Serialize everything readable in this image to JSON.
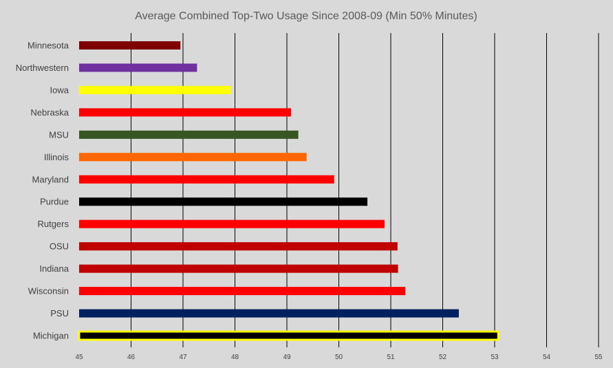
{
  "chart_data": {
    "type": "bar",
    "orientation": "horizontal",
    "title": "Average Combined Top-Two Usage Since 2008-09 (Min 50% Minutes)",
    "xlabel": "",
    "ylabel": "",
    "xlim": [
      45,
      55
    ],
    "x_ticks": [
      "45",
      "46",
      "47",
      "48",
      "49",
      "50",
      "51",
      "52",
      "53",
      "54",
      "55"
    ],
    "grid": "vertical",
    "legend": "none",
    "categories": [
      "Minnesota",
      "Northwestern",
      "Iowa",
      "Nebraska",
      "MSU",
      "Illinois",
      "Maryland",
      "Purdue",
      "Rutgers",
      "OSU",
      "Indiana",
      "Wisconsin",
      "PSU",
      "Michigan"
    ],
    "values": [
      46.95,
      47.27,
      47.92,
      49.08,
      49.22,
      49.38,
      49.91,
      50.55,
      50.88,
      51.13,
      51.14,
      51.28,
      52.31,
      53.07
    ],
    "colors": [
      "#7f0000",
      "#7030a0",
      "#ffff00",
      "#ff0000",
      "#375623",
      "#ff6600",
      "#ff0000",
      "#000000",
      "#ff0000",
      "#c00000",
      "#c00000",
      "#ff0000",
      "#002060",
      "#000000"
    ],
    "highlight": {
      "category": "Michigan",
      "outline": "#ffff00"
    }
  }
}
